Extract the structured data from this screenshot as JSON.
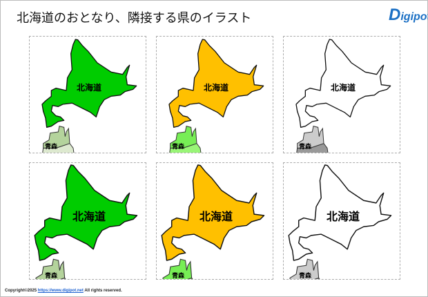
{
  "title": "北海道のおとなり、隣接する県のイラスト",
  "logo": {
    "text": "Digipot",
    "brand_color": "#1a6fc4"
  },
  "panels": [
    {
      "hokkaido": "北海道",
      "aomori": "青森",
      "fill": "#00cc00",
      "aomori_fill": "#b4d39c",
      "aomori_fill2": "#dde9cf"
    },
    {
      "hokkaido": "北海道",
      "aomori": "青森",
      "fill": "#ffc000",
      "aomori_fill": "#77ee55",
      "aomori_fill2": "#99f577"
    },
    {
      "hokkaido": "北海道",
      "aomori": "青森",
      "fill": "#ffffff",
      "aomori_fill": "#cccccc",
      "aomori_fill2": "#999999"
    },
    {
      "hokkaido": "北海道",
      "aomori": "青森",
      "fill": "#00cc00",
      "aomori_fill": "#b4d39c",
      "aomori_fill2": "#dde9cf"
    },
    {
      "hokkaido": "北海道",
      "aomori": "青森",
      "fill": "#ffc000",
      "aomori_fill": "#77ee55",
      "aomori_fill2": "#99f577"
    },
    {
      "hokkaido": "北海道",
      "aomori": "青森",
      "fill": "#ffffff",
      "aomori_fill": "#cccccc",
      "aomori_fill2": "#999999"
    }
  ],
  "footer": {
    "prefix": "Copyright©2025 ",
    "link": "https://www.digipot.net",
    "suffix": " All rights reserved."
  }
}
